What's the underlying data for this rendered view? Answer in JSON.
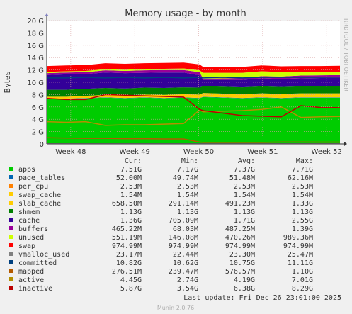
{
  "chart_data": {
    "type": "area",
    "title": "Memory usage - by month",
    "ylabel": "Bytes",
    "xlabel": "",
    "side_label": "RRDTOOL / TOBI OETIKER",
    "ylim": [
      0,
      20
    ],
    "y_unit": "G",
    "y_ticks": [
      "0",
      "2 G",
      "4 G",
      "6 G",
      "8 G",
      "10 G",
      "12 G",
      "14 G",
      "16 G",
      "18 G",
      "20 G"
    ],
    "y_tick_values": [
      0,
      2,
      4,
      6,
      8,
      10,
      12,
      14,
      16,
      18,
      20
    ],
    "x_ticks": [
      "Week 48",
      "Week 49",
      "Week 50",
      "Week 51",
      "Week 52"
    ],
    "x": [
      0,
      2.2,
      4.4,
      6.6,
      8.8,
      11,
      13.2,
      15.4,
      17.2,
      17.6,
      19.8,
      22,
      24.2,
      26.4,
      28.6,
      30.8,
      33
    ],
    "x_tick_positions": [
      2.7,
      9.9,
      17.1,
      24.3,
      31.5
    ],
    "grid": true,
    "legend_columns": [
      "Cur:",
      "Min:",
      "Avg:",
      "Max:"
    ],
    "series": [
      {
        "name": "apps",
        "color": "#00cc00",
        "cur": "7.51G",
        "min": "7.17G",
        "avg": "7.37G",
        "max": "7.71G",
        "values": [
          7.3,
          7.3,
          7.4,
          7.5,
          7.4,
          7.5,
          7.4,
          7.5,
          7.4,
          7.6,
          7.5,
          7.4,
          7.5,
          7.4,
          7.5,
          7.5,
          7.5
        ]
      },
      {
        "name": "page_tables",
        "color": "#0066b3",
        "cur": "52.00M",
        "min": "49.74M",
        "avg": "51.48M",
        "max": "62.16M",
        "values": [
          0.05,
          0.05,
          0.05,
          0.05,
          0.05,
          0.05,
          0.05,
          0.05,
          0.05,
          0.05,
          0.05,
          0.05,
          0.05,
          0.05,
          0.05,
          0.05,
          0.05
        ]
      },
      {
        "name": "per_cpu",
        "color": "#ff8000",
        "cur": "2.53M",
        "min": "2.53M",
        "avg": "2.53M",
        "max": "2.53M",
        "values": [
          0.003,
          0.003,
          0.003,
          0.003,
          0.003,
          0.003,
          0.003,
          0.003,
          0.003,
          0.003,
          0.003,
          0.003,
          0.003,
          0.003,
          0.003,
          0.003,
          0.003
        ]
      },
      {
        "name": "swap_cache",
        "color": "#ffcc00",
        "cur": "1.54M",
        "min": "1.54M",
        "avg": "1.54M",
        "max": "1.54M",
        "values": [
          0.002,
          0.002,
          0.002,
          0.002,
          0.002,
          0.002,
          0.002,
          0.002,
          0.002,
          0.002,
          0.002,
          0.002,
          0.002,
          0.002,
          0.002,
          0.002,
          0.002
        ]
      },
      {
        "name": "slab_cache",
        "color": "#ffcc00",
        "cur": "658.50M",
        "min": "291.14M",
        "avg": "491.23M",
        "max": "1.33G",
        "values": [
          0.3,
          0.3,
          0.35,
          0.4,
          0.4,
          0.45,
          0.5,
          0.5,
          0.55,
          0.6,
          0.6,
          0.6,
          0.65,
          0.65,
          0.65,
          0.65,
          0.65
        ]
      },
      {
        "name": "shmem",
        "color": "#008000",
        "cur": "1.13G",
        "min": "1.13G",
        "avg": "1.13G",
        "max": "1.13G",
        "values": [
          1.13,
          1.13,
          1.13,
          1.13,
          1.13,
          1.13,
          1.13,
          1.13,
          1.13,
          1.13,
          1.13,
          1.13,
          1.13,
          1.13,
          1.13,
          1.13,
          1.13
        ]
      },
      {
        "name": "cache",
        "color": "#330099",
        "cur": "1.36G",
        "min": "705.09M",
        "avg": "1.71G",
        "max": "2.55G",
        "values": [
          2.4,
          2.5,
          2.4,
          2.5,
          2.5,
          2.4,
          2.5,
          2.4,
          2.0,
          1.0,
          1.1,
          1.2,
          1.3,
          1.3,
          1.3,
          1.35,
          1.36
        ]
      },
      {
        "name": "buffers",
        "color": "#990099",
        "cur": "465.22M",
        "min": "68.03M",
        "avg": "487.25M",
        "max": "1.39G",
        "values": [
          0.3,
          0.3,
          0.3,
          0.35,
          0.35,
          0.4,
          0.4,
          0.4,
          0.5,
          0.2,
          0.25,
          0.3,
          0.35,
          0.4,
          0.45,
          0.45,
          0.47
        ]
      },
      {
        "name": "unused",
        "color": "#ccff00",
        "cur": "551.19M",
        "min": "146.08M",
        "avg": "470.26M",
        "max": "989.36M",
        "values": [
          0.2,
          0.2,
          0.2,
          0.2,
          0.2,
          0.2,
          0.2,
          0.25,
          0.3,
          0.95,
          0.9,
          0.85,
          0.8,
          0.7,
          0.6,
          0.55,
          0.55
        ]
      },
      {
        "name": "swap",
        "color": "#ff0000",
        "cur": "974.99M",
        "min": "974.99M",
        "avg": "974.99M",
        "max": "974.99M",
        "values": [
          0.95,
          0.95,
          0.95,
          0.95,
          0.95,
          0.95,
          0.95,
          0.95,
          0.95,
          0.95,
          0.95,
          0.95,
          0.95,
          0.95,
          0.95,
          0.95,
          0.95
        ]
      },
      {
        "name": "vmalloc_used",
        "color": "#808080",
        "cur": "23.17M",
        "min": "22.44M",
        "avg": "23.30M",
        "max": "25.47M",
        "values": [
          0.023,
          0.023,
          0.023,
          0.023,
          0.023,
          0.023,
          0.023,
          0.023,
          0.023,
          0.023,
          0.023,
          0.023,
          0.023,
          0.023,
          0.023,
          0.023,
          0.023
        ]
      },
      {
        "name": "committed",
        "color": "#00407f",
        "cur": "10.82G",
        "min": "10.62G",
        "avg": "10.75G",
        "max": "11.11G",
        "values": [
          10.7,
          10.7,
          10.8,
          10.7,
          10.8,
          10.7,
          10.8,
          10.7,
          10.8,
          10.7,
          10.8,
          10.7,
          10.8,
          10.8,
          10.8,
          10.8,
          10.82
        ]
      },
      {
        "name": "mapped",
        "color": "#b35a00",
        "cur": "276.51M",
        "min": "239.47M",
        "avg": "576.57M",
        "max": "1.10G",
        "values": [
          1.0,
          0.95,
          0.9,
          0.9,
          0.85,
          0.85,
          0.8,
          0.8,
          0.3,
          0.25,
          0.25,
          0.25,
          0.25,
          0.3,
          0.3,
          0.28,
          0.28
        ]
      },
      {
        "name": "active",
        "color": "#b38f00",
        "cur": "4.45G",
        "min": "2.74G",
        "avg": "4.19G",
        "max": "7.01G",
        "values": [
          3.6,
          3.5,
          3.6,
          3.0,
          3.1,
          3.1,
          3.2,
          3.3,
          5.5,
          5.2,
          5.3,
          5.4,
          5.6,
          6.0,
          4.3,
          4.4,
          4.45
        ]
      },
      {
        "name": "inactive",
        "color": "#bb0000",
        "cur": "5.87G",
        "min": "3.54G",
        "avg": "6.38G",
        "max": "8.29G",
        "values": [
          7.4,
          7.2,
          7.2,
          8.0,
          7.9,
          7.8,
          7.7,
          7.6,
          5.6,
          5.4,
          5.0,
          4.6,
          4.5,
          4.4,
          6.2,
          5.9,
          5.87
        ]
      }
    ],
    "last_update": "Last update: Fri Dec 26 23:01:00 2025",
    "footer": "Munin 2.0.76"
  }
}
